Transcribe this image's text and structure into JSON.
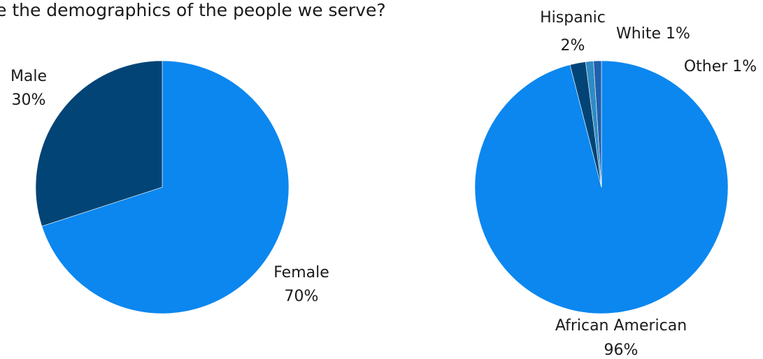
{
  "title": "e the demographics of the people we serve?",
  "chart_data": [
    {
      "type": "pie",
      "title": "",
      "slices": [
        {
          "name": "Female",
          "value": 70,
          "value_label": "70%",
          "color": "#0b87ef"
        },
        {
          "name": "Male",
          "value": 30,
          "value_label": "30%",
          "color": "#034476"
        }
      ]
    },
    {
      "type": "pie",
      "title": "",
      "slices": [
        {
          "name": "African American",
          "value": 96,
          "value_label": "96%",
          "color": "#0b87ef"
        },
        {
          "name": "Hispanic",
          "value": 2,
          "value_label": "2%",
          "color": "#034476"
        },
        {
          "name": "White",
          "value": 1,
          "value_label": "1%",
          "color": "#2e8bc4"
        },
        {
          "name": "Other",
          "value": 1,
          "value_label": "1%",
          "color": "#1f5fae"
        }
      ]
    }
  ]
}
